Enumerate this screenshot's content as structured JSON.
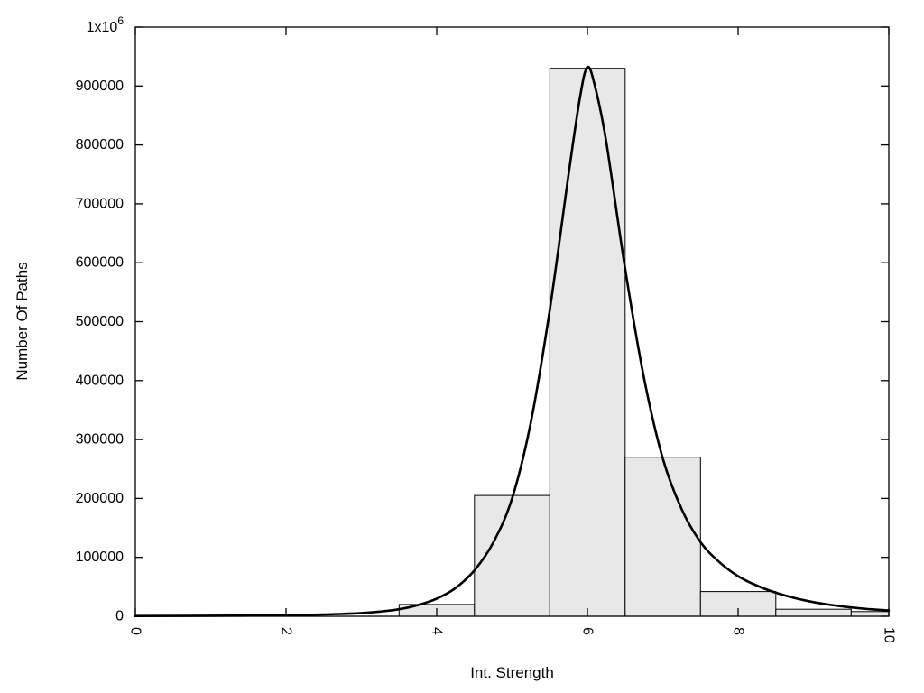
{
  "chart_data": {
    "type": "bar",
    "subtype": "histogram-with-fit-curve",
    "title": "",
    "xlabel": "Int. Strength",
    "ylabel": "Number Of Paths",
    "xlim": [
      0,
      10
    ],
    "ylim": [
      0,
      1000000
    ],
    "grid": false,
    "legend": null,
    "xticks": [
      0,
      2,
      4,
      6,
      8,
      10
    ],
    "xtick_labels": [
      "0",
      "2",
      "4",
      "6",
      "8",
      "10"
    ],
    "xtick_labels_rotated": true,
    "yticks": [
      0,
      100000,
      200000,
      300000,
      400000,
      500000,
      600000,
      700000,
      800000,
      900000,
      1000000
    ],
    "ytick_labels": [
      "0",
      "100000",
      "200000",
      "300000",
      "400000",
      "500000",
      "600000",
      "700000",
      "800000",
      "900000",
      "1x10^6"
    ],
    "bars": [
      {
        "x0": 3.5,
        "x1": 4.5,
        "count": 20000
      },
      {
        "x0": 4.5,
        "x1": 5.5,
        "count": 205000
      },
      {
        "x0": 5.5,
        "x1": 6.5,
        "count": 930000
      },
      {
        "x0": 6.5,
        "x1": 7.5,
        "count": 270000
      },
      {
        "x0": 7.5,
        "x1": 8.5,
        "count": 42000
      },
      {
        "x0": 8.5,
        "x1": 9.5,
        "count": 12000
      },
      {
        "x0": 9.5,
        "x1": 10.0,
        "count": 8000
      }
    ],
    "fit_curve": {
      "peak_x": 6.0,
      "peak_y": 932000,
      "points": [
        [
          0.0,
          500
        ],
        [
          1.0,
          900
        ],
        [
          2.0,
          1800
        ],
        [
          2.5,
          3000
        ],
        [
          3.0,
          5500
        ],
        [
          3.25,
          8000
        ],
        [
          3.5,
          12000
        ],
        [
          3.75,
          19000
        ],
        [
          4.0,
          30000
        ],
        [
          4.25,
          48000
        ],
        [
          4.5,
          78000
        ],
        [
          4.75,
          125000
        ],
        [
          5.0,
          200000
        ],
        [
          5.25,
          330000
        ],
        [
          5.5,
          520000
        ],
        [
          5.75,
          750000
        ],
        [
          5.9,
          880000
        ],
        [
          6.0,
          932000
        ],
        [
          6.1,
          900000
        ],
        [
          6.25,
          805000
        ],
        [
          6.5,
          590000
        ],
        [
          6.75,
          405000
        ],
        [
          7.0,
          268000
        ],
        [
          7.25,
          182000
        ],
        [
          7.5,
          126000
        ],
        [
          7.75,
          92000
        ],
        [
          8.0,
          68000
        ],
        [
          8.25,
          52000
        ],
        [
          8.5,
          40000
        ],
        [
          8.75,
          31000
        ],
        [
          9.0,
          24000
        ],
        [
          9.25,
          19000
        ],
        [
          9.5,
          15000
        ],
        [
          9.75,
          12000
        ],
        [
          10.0,
          10000
        ]
      ]
    },
    "colors": {
      "background": "#ffffff",
      "bar_fill": "#e8e8e8",
      "bar_stroke": "#000000",
      "curve": "#000000",
      "axis": "#000000",
      "text": "#000000"
    }
  }
}
